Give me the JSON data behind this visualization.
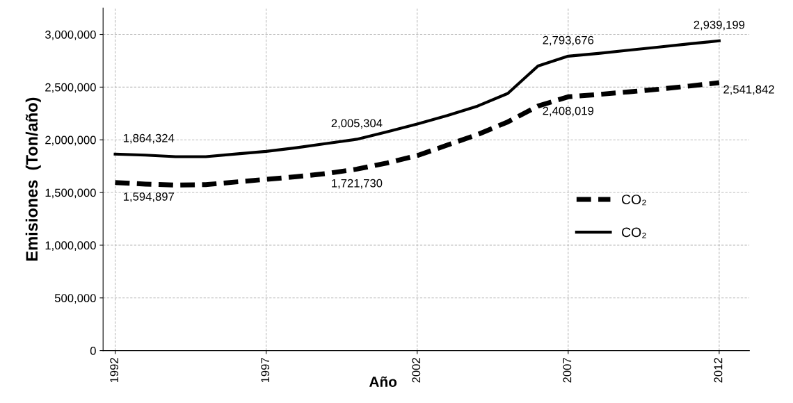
{
  "chart_data": {
    "type": "line",
    "xlabel": "Año",
    "ylabel": "Emisiones  (Ton/año)",
    "x": [
      1992,
      1993,
      1994,
      1995,
      1996,
      1997,
      1998,
      1999,
      2000,
      2001,
      2002,
      2003,
      2004,
      2005,
      2006,
      2007,
      2008,
      2009,
      2010,
      2011,
      2012
    ],
    "series": [
      {
        "name": "CO₂",
        "color": "#000000",
        "line_style": "dashed",
        "values": [
          1594897,
          1580000,
          1570000,
          1575000,
          1600000,
          1625000,
          1650000,
          1680000,
          1721730,
          1780000,
          1850000,
          1950000,
          2050000,
          2170000,
          2320000,
          2408019,
          2430000,
          2455000,
          2480000,
          2510000,
          2541842
        ],
        "value_labels": [
          "1,594,897",
          null,
          null,
          null,
          null,
          null,
          null,
          null,
          "1,721,730",
          null,
          null,
          null,
          null,
          null,
          null,
          "2,408,019",
          null,
          null,
          null,
          null,
          "2,541,842"
        ]
      },
      {
        "name": "CO₂",
        "color": "#000000",
        "line_style": "solid",
        "values": [
          1864324,
          1855000,
          1840000,
          1840000,
          1865000,
          1890000,
          1925000,
          1965000,
          2005304,
          2075000,
          2150000,
          2230000,
          2320000,
          2440000,
          2700000,
          2793676,
          2820000,
          2850000,
          2880000,
          2910000,
          2939199
        ],
        "value_labels": [
          "1,864,324",
          null,
          null,
          null,
          null,
          null,
          null,
          null,
          "2,005,304",
          null,
          null,
          null,
          null,
          null,
          null,
          "2,793,676",
          null,
          null,
          null,
          null,
          "2,939,199"
        ]
      }
    ],
    "xlim": [
      1991.6,
      2013
    ],
    "xticks": [
      1992,
      1997,
      2002,
      2007,
      2012
    ],
    "ylim": [
      0,
      3250000
    ],
    "yticks": [
      0,
      {
        "value": 500000,
        "label": "500,000"
      },
      {
        "value": 1000000,
        "label": "1,000,000"
      },
      {
        "value": 1500000,
        "label": "1,500,000"
      },
      {
        "value": 2000000,
        "label": "2,000,000"
      },
      {
        "value": 2500000,
        "label": "2,500,000"
      },
      {
        "value": 3000000,
        "label": "3,000,000"
      }
    ],
    "grid": true,
    "legend": "center right",
    "marker": "none"
  }
}
